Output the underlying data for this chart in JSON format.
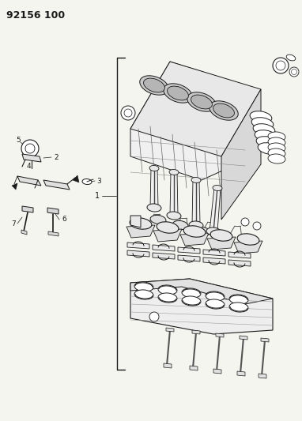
{
  "title_text": "92156 100",
  "bg_color": "#f5f5f0",
  "line_color": "#1a1a1a",
  "figsize": [
    3.82,
    5.33
  ],
  "dpi": 100,
  "xlim": [
    0,
    382
  ],
  "ylim": [
    0,
    533
  ]
}
